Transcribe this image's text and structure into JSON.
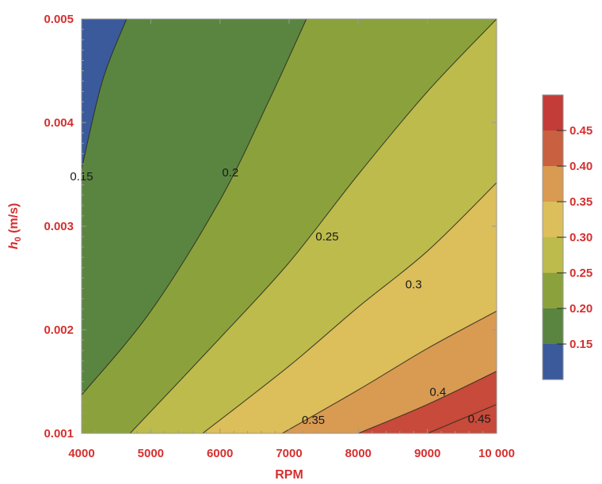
{
  "chart_data": {
    "type": "contour",
    "x_axis": {
      "label": "RPM",
      "range": [
        4000,
        10000
      ],
      "ticks": [
        4000,
        5000,
        6000,
        7000,
        8000,
        9000,
        10000
      ],
      "tick_labels": [
        "4000",
        "5000",
        "6000",
        "7000",
        "8000",
        "9000",
        "10 000"
      ]
    },
    "y_axis": {
      "label_main": "h",
      "label_sub": "0",
      "label_unit": " (m/s)",
      "range": [
        0.001,
        0.005
      ],
      "ticks": [
        0.001,
        0.002,
        0.003,
        0.004,
        0.005
      ],
      "tick_labels": [
        "0.001",
        "0.002",
        "0.003",
        "0.004",
        "0.005"
      ]
    },
    "levels": [
      0.15,
      0.2,
      0.25,
      0.3,
      0.35,
      0.4,
      0.45
    ],
    "level_labels": [
      "0.15",
      "0.2",
      "0.25",
      "0.3",
      "0.35",
      "0.4",
      "0.45"
    ],
    "contours": [
      {
        "level": 0.15,
        "points": [
          [
            4000,
            0.00355
          ],
          [
            4300,
            0.0044
          ],
          [
            4650,
            0.005
          ]
        ]
      },
      {
        "level": 0.2,
        "points": [
          [
            4000,
            0.00137
          ],
          [
            5000,
            0.00218
          ],
          [
            6000,
            0.00325
          ],
          [
            6700,
            0.0042
          ],
          [
            7250,
            0.005
          ]
        ]
      },
      {
        "level": 0.25,
        "points": [
          [
            4700,
            0.001
          ],
          [
            6000,
            0.00192
          ],
          [
            7000,
            0.00265
          ],
          [
            8000,
            0.0035
          ],
          [
            9000,
            0.0043
          ],
          [
            10000,
            0.005
          ]
        ]
      },
      {
        "level": 0.3,
        "points": [
          [
            5750,
            0.001
          ],
          [
            7000,
            0.00165
          ],
          [
            8000,
            0.00222
          ],
          [
            9000,
            0.00276
          ],
          [
            10000,
            0.00342
          ]
        ]
      },
      {
        "level": 0.35,
        "points": [
          [
            6900,
            0.001
          ],
          [
            8000,
            0.00142
          ],
          [
            9000,
            0.00182
          ],
          [
            10000,
            0.00218
          ]
        ]
      },
      {
        "level": 0.4,
        "points": [
          [
            8000,
            0.001
          ],
          [
            9000,
            0.00128
          ],
          [
            10000,
            0.0016
          ]
        ]
      },
      {
        "level": 0.45,
        "points": [
          [
            9000,
            0.001
          ],
          [
            10000,
            0.00128
          ]
        ]
      }
    ],
    "contour_labels": [
      {
        "text": "0.15",
        "x": 4000,
        "y": 0.00348
      },
      {
        "text": "0.2",
        "x": 6150,
        "y": 0.00352
      },
      {
        "text": "0.25",
        "x": 7550,
        "y": 0.0029
      },
      {
        "text": "0.3",
        "x": 8800,
        "y": 0.00244
      },
      {
        "text": "0.35",
        "x": 7350,
        "y": 0.00113
      },
      {
        "text": "0.4",
        "x": 9150,
        "y": 0.0014
      },
      {
        "text": "0.45",
        "x": 9750,
        "y": 0.00114
      }
    ],
    "band_colors": [
      "#3a5a9c",
      "#5a8540",
      "#8ba23c",
      "#bcbb4c",
      "#dcbe5a",
      "#d99a52",
      "#c74a3a",
      "#c74a3a"
    ],
    "legend": {
      "position": "right",
      "range": [
        0.1,
        0.5
      ],
      "ticks": [
        0.15,
        0.2,
        0.25,
        0.3,
        0.35,
        0.4,
        0.45
      ],
      "tick_labels": [
        "0.15",
        "0.20",
        "0.25",
        "0.30",
        "0.35",
        "0.40",
        "0.45"
      ],
      "colors": [
        "#3a5a9c",
        "#5a8540",
        "#8ba23c",
        "#bcbb4c",
        "#dcbe5a",
        "#d99a52",
        "#c9603f",
        "#c43c38"
      ]
    },
    "accent_color": "#d62f2f",
    "frame": true,
    "grid": false
  }
}
